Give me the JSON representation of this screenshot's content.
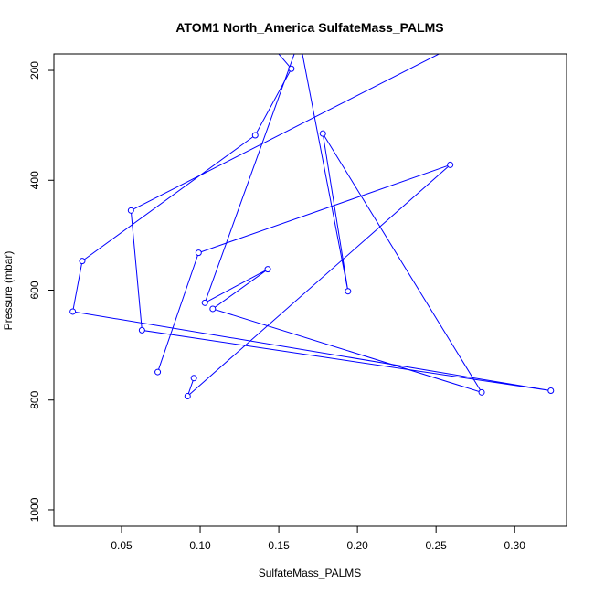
{
  "chart_data": {
    "type": "line",
    "title": "ATOM1 North_America SulfateMass_PALMS",
    "xlabel": "SulfateMass_PALMS",
    "ylabel": "Pressure (mbar)",
    "xlim": [
      0.007,
      0.333
    ],
    "ylim": [
      1030,
      170
    ],
    "y_inverted": true,
    "x_ticks": [
      0.05,
      0.1,
      0.15,
      0.2,
      0.25,
      0.3
    ],
    "x_tick_labels": [
      "0.05",
      "0.10",
      "0.15",
      "0.20",
      "0.25",
      "0.30"
    ],
    "y_ticks": [
      200,
      400,
      600,
      800,
      1000
    ],
    "y_tick_labels": [
      "200",
      "400",
      "600",
      "800",
      "1000"
    ],
    "grid": false,
    "series_color": "#0000ff",
    "series": [
      {
        "points": [
          {
            "x": 0.161,
            "y": 110
          },
          {
            "x": 0.194,
            "y": 602
          },
          {
            "x": 0.178,
            "y": 315
          },
          {
            "x": 0.279,
            "y": 786
          },
          {
            "x": 0.108,
            "y": 634
          },
          {
            "x": 0.143,
            "y": 562
          },
          {
            "x": 0.103,
            "y": 623
          },
          {
            "x": 0.163,
            "y": 145
          },
          {
            "x": 0.164,
            "y": 100
          }
        ]
      },
      {
        "points": [
          {
            "x": 0.3,
            "y": 100
          },
          {
            "x": 0.056,
            "y": 455
          },
          {
            "x": 0.063,
            "y": 673
          },
          {
            "x": 0.323,
            "y": 783
          },
          {
            "x": 0.019,
            "y": 639
          },
          {
            "x": 0.025,
            "y": 547
          },
          {
            "x": 0.135,
            "y": 318
          },
          {
            "x": 0.158,
            "y": 197
          },
          {
            "x": 0.129,
            "y": 100
          }
        ]
      },
      {
        "points": [
          {
            "x": 0.073,
            "y": 749
          },
          {
            "x": 0.099,
            "y": 532
          },
          {
            "x": 0.259,
            "y": 372
          },
          {
            "x": 0.092,
            "y": 793
          },
          {
            "x": 0.096,
            "y": 760
          }
        ]
      }
    ]
  }
}
